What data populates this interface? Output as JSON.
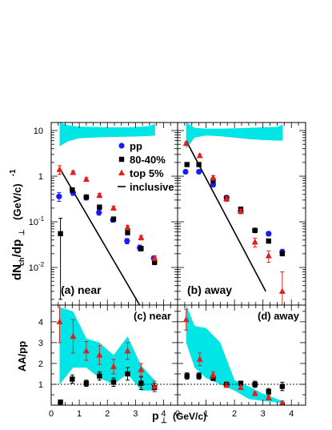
{
  "chart_data": {
    "type": "scatter",
    "legend": {
      "placement": "top-right of left upper panel",
      "entries": [
        {
          "label": "pp",
          "color": "#1a1aff",
          "marker": "circle"
        },
        {
          "label": "80-40%",
          "color": "#000000",
          "marker": "square"
        },
        {
          "label": "top 5%",
          "color": "#e0201b",
          "marker": "triangle"
        },
        {
          "label": "inclusive",
          "color": "#000000",
          "marker": "line"
        }
      ]
    },
    "band_color": "#00e5e5",
    "xlabel": "p⊥ (GeV/c)",
    "xlabel_main": "p",
    "xlabel_sub": "⊥",
    "xlabel_unit": "(GeV/c)",
    "xlim": [
      0,
      4.5
    ],
    "x_ticks": [
      "0",
      "1",
      "2",
      "3",
      "4"
    ],
    "top": {
      "ylabel": "dNch/dp⊥ (GeV/c)-1",
      "ylabel_parts": {
        "main1": "dN",
        "sub1": "ch",
        "main2": "/dp",
        "sub2": "⊥",
        "unit": "(GeV/c)",
        "sup": "-1"
      },
      "yscale": "log",
      "ylim": [
        0.0015,
        15
      ],
      "y_ticks": [
        {
          "label": "10",
          "exp": ""
        },
        {
          "label": "1",
          "exp": ""
        },
        {
          "label": "10",
          "exp": "-1"
        },
        {
          "label": "10",
          "exp": "-2"
        }
      ],
      "panels": [
        {
          "label": "(a) near",
          "band": {
            "x": [
              0.3,
              0.6,
              1.0,
              1.5,
              2.0,
              2.5,
              3.0,
              3.5,
              3.7
            ],
            "lo": [
              4.5,
              5.8,
              6.8,
              7.0,
              7.2,
              7.3,
              7.4,
              7.6,
              7.8
            ],
            "hi": [
              15.0,
              13.0,
              12.2,
              12.0,
              11.8,
              11.8,
              11.9,
              12.6,
              14.0
            ]
          },
          "inclusive": {
            "x": [
              0.3,
              3.15
            ],
            "y": [
              1.5,
              0.0015
            ]
          },
          "series": [
            {
              "name": "pp",
              "x": [
                0.28,
                0.78,
                1.25,
                1.7,
                2.2,
                2.7,
                3.15,
                3.65
              ],
              "y": [
                0.36,
                0.43,
                0.34,
                0.16,
                0.11,
                0.038,
                0.027,
                0.016
              ],
              "err": [
                0.08,
                0.05,
                0.04,
                0.02,
                0.012,
                0.005,
                0.004,
                0.002
              ]
            },
            {
              "name": "80-40%",
              "x": [
                0.33,
                0.75,
                1.25,
                1.72,
                2.22,
                2.72,
                3.2,
                3.68
              ],
              "y": [
                0.055,
                0.5,
                0.35,
                0.21,
                0.115,
                0.058,
                0.026,
                0.013
              ],
              "err_lo": [
                0.053,
                0.06,
                0.04,
                0.02,
                0.01,
                0.006,
                0.003,
                0.0015
              ],
              "err_hi": [
                0.065,
                0.06,
                0.04,
                0.02,
                0.01,
                0.006,
                0.003,
                0.0015
              ]
            },
            {
              "name": "top 5%",
              "x": [
                0.3,
                0.78,
                1.25,
                1.72,
                2.22,
                2.72,
                3.2,
                3.68
              ],
              "y": [
                1.4,
                1.2,
                0.85,
                0.38,
                0.2,
                0.075,
                0.045,
                0.016
              ],
              "err": [
                0.3,
                0.1,
                0.08,
                0.04,
                0.02,
                0.008,
                0.005,
                0.002
              ]
            }
          ]
        },
        {
          "label": "(b) away",
          "band": {
            "x": [
              0.3,
              0.6,
              1.0,
              1.5,
              2.0,
              2.5,
              3.0,
              3.5,
              3.7
            ],
            "lo": [
              4.0,
              7.0,
              7.8,
              7.5,
              7.0,
              6.5,
              6.2,
              6.0,
              6.0
            ],
            "hi": [
              15.0,
              11.5,
              11.0,
              11.0,
              11.2,
              11.5,
              11.8,
              12.0,
              13.5
            ]
          },
          "inclusive": {
            "x": [
              0.3,
              3.1
            ],
            "y": [
              6.0,
              0.003
            ]
          },
          "series": [
            {
              "name": "pp",
              "x": [
                0.28,
                0.75,
                1.25,
                1.72,
                2.22,
                2.72,
                3.2,
                3.68
              ],
              "y": [
                1.25,
                1.25,
                0.65,
                0.34,
                0.17,
                0.065,
                0.055,
                0.022
              ],
              "err": [
                0.12,
                0.1,
                0.06,
                0.03,
                0.015,
                0.006,
                0.006,
                0.003
              ]
            },
            {
              "name": "80-40%",
              "x": [
                0.33,
                0.75,
                1.25,
                1.72,
                2.22,
                2.72,
                3.2,
                3.68
              ],
              "y": [
                1.8,
                1.8,
                0.8,
                0.33,
                0.19,
                0.065,
                0.038,
                0.02
              ],
              "err": [
                0.15,
                0.15,
                0.08,
                0.03,
                0.02,
                0.007,
                0.004,
                0.002
              ]
            },
            {
              "name": "top 5%",
              "x": [
                0.3,
                0.78,
                1.25,
                1.72,
                2.22,
                2.72,
                3.2,
                3.68
              ],
              "y": [
                5.2,
                2.8,
                0.92,
                0.32,
                0.17,
                0.036,
                0.018,
                0.003
              ],
              "err_lo": [
                0.4,
                0.25,
                0.1,
                0.04,
                0.02,
                0.008,
                0.005,
                0.0015
              ],
              "err_hi": [
                0.4,
                0.25,
                0.1,
                0.04,
                0.02,
                0.008,
                0.005,
                0.005
              ]
            }
          ]
        }
      ]
    },
    "bottom": {
      "ylabel": "AA/pp",
      "ylim": [
        0,
        4.8
      ],
      "y_ticks": [
        "1",
        "2",
        "3",
        "4"
      ],
      "reference_line": 1,
      "panels": [
        {
          "label": "(c) near",
          "band": {
            "x": [
              0.3,
              0.78,
              1.25,
              1.72,
              2.22,
              2.72,
              3.2,
              3.68
            ],
            "lo": [
              1.0,
              1.8,
              1.8,
              1.3,
              1.0,
              1.5,
              0.7,
              0.7
            ],
            "hi": [
              4.7,
              4.5,
              3.2,
              3.0,
              2.4,
              3.3,
              1.9,
              1.2
            ]
          },
          "series": [
            {
              "name": "80-40%",
              "x": [
                0.33,
                0.75,
                1.25,
                1.72,
                2.22,
                2.72,
                3.2,
                3.68
              ],
              "y": [
                0.15,
                1.25,
                1.05,
                1.4,
                1.1,
                1.5,
                1.05,
                0.85
              ],
              "err": [
                0.1,
                0.2,
                0.15,
                0.2,
                0.2,
                0.3,
                0.3,
                0.2
              ]
            },
            {
              "name": "top 5%",
              "x": [
                0.3,
                0.78,
                1.25,
                1.72,
                2.22,
                2.72,
                3.2,
                3.68
              ],
              "y": [
                4.0,
                3.3,
                2.6,
                2.4,
                1.85,
                2.6,
                1.7,
                0.9
              ],
              "err": [
                1.0,
                0.8,
                0.45,
                0.45,
                0.35,
                0.4,
                0.3,
                0.25
              ]
            }
          ]
        },
        {
          "label": "(d) away",
          "band": {
            "x": [
              0.3,
              0.6,
              1.0,
              1.5,
              2.0,
              2.5,
              3.0,
              3.68
            ],
            "lo": [
              3.0,
              1.8,
              1.3,
              1.0,
              0.7,
              0.3,
              0.2,
              0.1
            ],
            "hi": [
              4.8,
              3.8,
              3.7,
              3.0,
              1.2,
              0.9,
              0.55,
              0.2
            ]
          },
          "series": [
            {
              "name": "80-40%",
              "x": [
                0.33,
                0.75,
                1.25,
                1.72,
                2.22,
                2.72,
                3.2,
                3.68
              ],
              "y": [
                1.4,
                1.4,
                1.3,
                1.0,
                1.05,
                1.0,
                0.65,
                0.9
              ],
              "err": [
                0.15,
                0.15,
                0.12,
                0.1,
                0.1,
                0.15,
                0.15,
                0.2
              ]
            },
            {
              "name": "top 5%",
              "x": [
                0.3,
                0.78,
                1.25,
                1.72,
                2.22,
                2.72,
                3.2,
                3.68
              ],
              "y": [
                4.1,
                2.2,
                1.45,
                0.95,
                0.85,
                0.55,
                0.35,
                0.1
              ],
              "err": [
                0.5,
                0.3,
                0.15,
                0.1,
                0.1,
                0.08,
                0.08,
                0.1
              ]
            }
          ]
        }
      ]
    }
  }
}
